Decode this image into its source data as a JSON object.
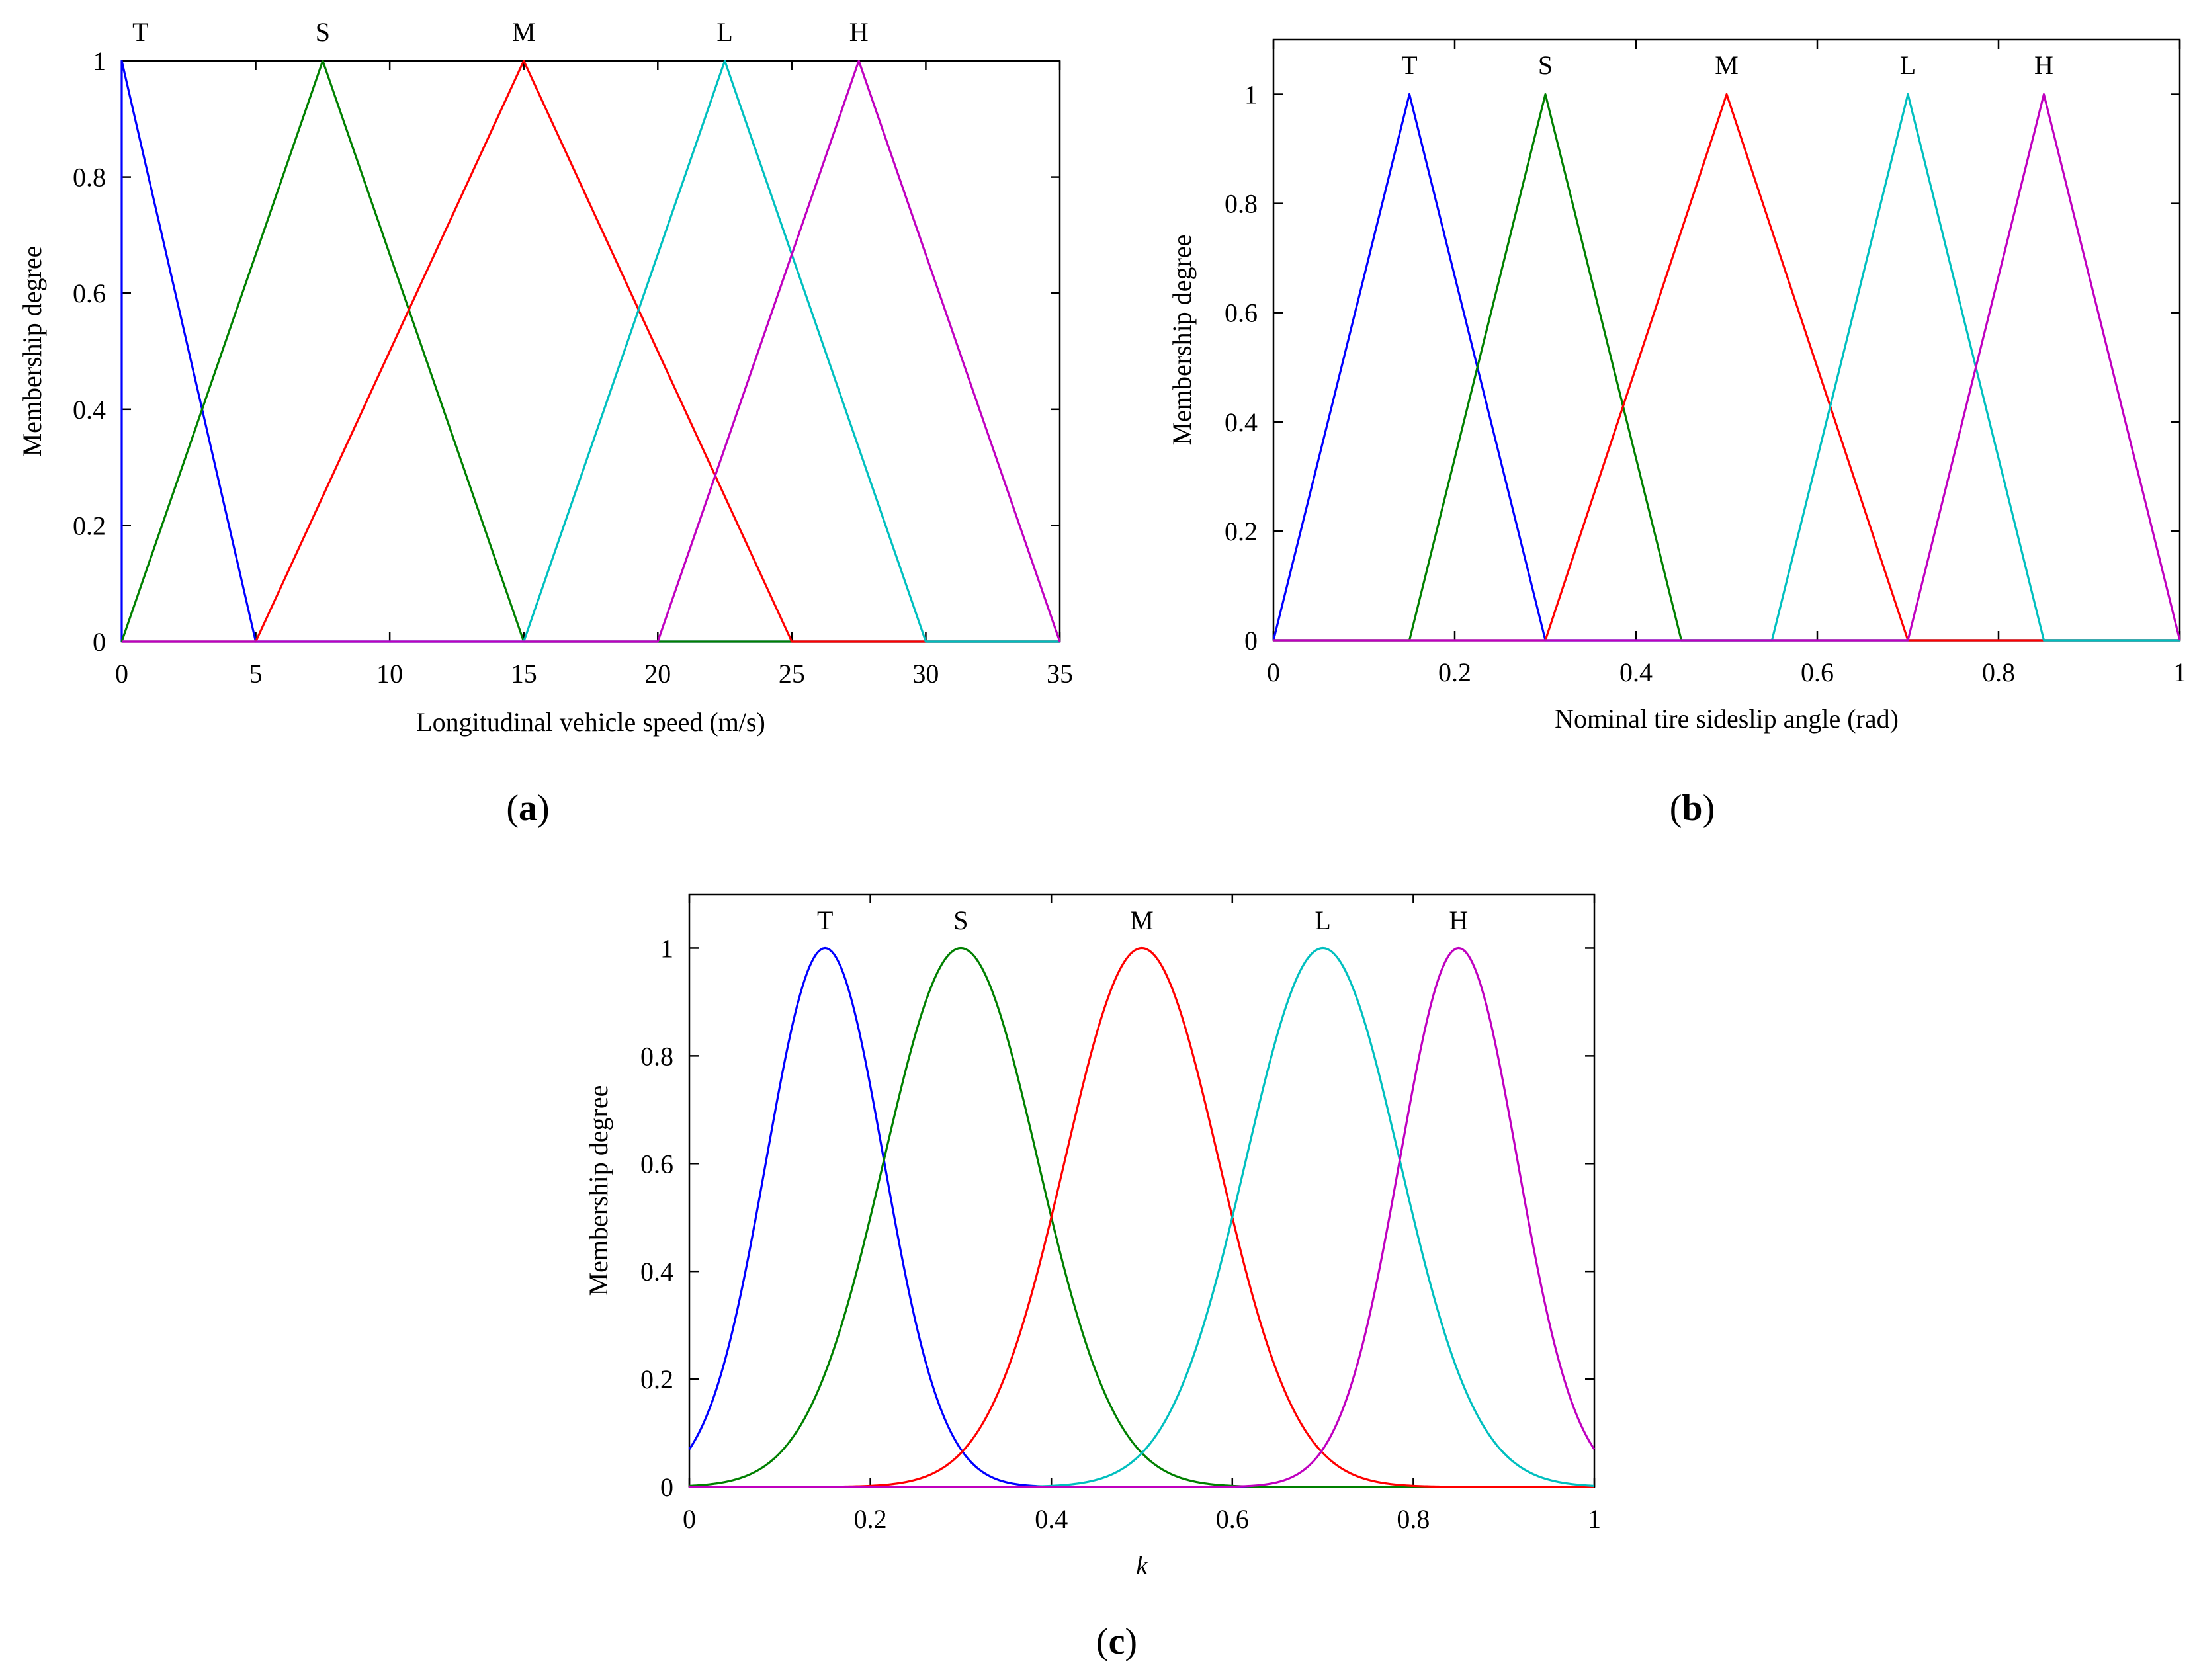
{
  "figure": {
    "panels": [
      {
        "id": "a",
        "caption_open": "(",
        "caption_letter": "a",
        "caption_close": ")"
      },
      {
        "id": "b",
        "caption_open": "(",
        "caption_letter": "b",
        "caption_close": ")"
      },
      {
        "id": "c",
        "caption_open": "(",
        "caption_letter": "c",
        "caption_close": ")"
      }
    ]
  },
  "chart_data": [
    {
      "type": "line",
      "panel": "a",
      "title": "",
      "xlabel": "Longitudinal vehicle speed (m/s)",
      "ylabel": "Membership degree",
      "xlim": [
        0,
        35
      ],
      "ylim": [
        0,
        1
      ],
      "xticks": [
        "0",
        "5",
        "10",
        "15",
        "20",
        "25",
        "30",
        "35"
      ],
      "yticks": [
        "0",
        "0.2",
        "0.4",
        "0.6",
        "0.8",
        "1"
      ],
      "grid": false,
      "series": [
        {
          "name": "T",
          "color": "#0000ff",
          "x": [
            0,
            0,
            5,
            35
          ],
          "y": [
            0,
            1,
            0,
            0
          ]
        },
        {
          "name": "S",
          "color": "#008000",
          "x": [
            0,
            7.5,
            15,
            35
          ],
          "y": [
            0,
            1,
            0,
            0
          ]
        },
        {
          "name": "M",
          "color": "#ff0000",
          "x": [
            0,
            5,
            15,
            25,
            35
          ],
          "y": [
            0,
            0,
            1,
            0,
            0
          ]
        },
        {
          "name": "L",
          "color": "#00bfbf",
          "x": [
            0,
            15,
            22.5,
            30,
            35
          ],
          "y": [
            0,
            0,
            1,
            0,
            0
          ]
        },
        {
          "name": "H",
          "color": "#bf00bf",
          "x": [
            0,
            20,
            27.5,
            35
          ],
          "y": [
            0,
            0,
            1,
            0
          ]
        }
      ],
      "peak_labels": [
        {
          "text": "T",
          "x": 0.7
        },
        {
          "text": "S",
          "x": 7.5
        },
        {
          "text": "M",
          "x": 15
        },
        {
          "text": "L",
          "x": 22.5
        },
        {
          "text": "H",
          "x": 27.5
        }
      ]
    },
    {
      "type": "line",
      "panel": "b",
      "title": "",
      "xlabel": "Nominal tire sideslip angle (rad)",
      "ylabel": "Membership degree",
      "xlim": [
        0,
        1
      ],
      "ylim": [
        0,
        1.1
      ],
      "xticks": [
        "0",
        "0.2",
        "0.4",
        "0.6",
        "0.8",
        "1"
      ],
      "yticks": [
        "0",
        "0.2",
        "0.4",
        "0.6",
        "0.8",
        "1"
      ],
      "grid": false,
      "series": [
        {
          "name": "T",
          "color": "#0000ff",
          "x": [
            0,
            0.15,
            0.3,
            1
          ],
          "y": [
            0,
            1,
            0,
            0
          ]
        },
        {
          "name": "S",
          "color": "#008000",
          "x": [
            0,
            0.15,
            0.3,
            0.45,
            1
          ],
          "y": [
            0,
            0,
            1,
            0,
            0
          ]
        },
        {
          "name": "M",
          "color": "#ff0000",
          "x": [
            0,
            0.3,
            0.5,
            0.7,
            1
          ],
          "y": [
            0,
            0,
            1,
            0,
            0
          ]
        },
        {
          "name": "L",
          "color": "#00bfbf",
          "x": [
            0,
            0.55,
            0.7,
            0.85,
            1
          ],
          "y": [
            0,
            0,
            1,
            0,
            0
          ]
        },
        {
          "name": "H",
          "color": "#bf00bf",
          "x": [
            0,
            0.7,
            0.85,
            1
          ],
          "y": [
            0,
            0,
            1,
            0
          ]
        }
      ],
      "peak_labels": [
        {
          "text": "T",
          "x": 0.15
        },
        {
          "text": "S",
          "x": 0.3
        },
        {
          "text": "M",
          "x": 0.5
        },
        {
          "text": "L",
          "x": 0.7
        },
        {
          "text": "H",
          "x": 0.85
        }
      ]
    },
    {
      "type": "line",
      "panel": "c",
      "title": "",
      "xlabel": "k",
      "ylabel": "Membership degree",
      "xlim": [
        0,
        1
      ],
      "ylim": [
        0,
        1.1
      ],
      "xticks": [
        "0",
        "0.2",
        "0.4",
        "0.6",
        "0.8",
        "1"
      ],
      "yticks": [
        "0",
        "0.2",
        "0.4",
        "0.6",
        "0.8",
        "1"
      ],
      "grid": false,
      "curve": "gaussian",
      "series": [
        {
          "name": "T",
          "color": "#0000ff",
          "center": 0.15,
          "sigma": 0.065
        },
        {
          "name": "S",
          "color": "#008000",
          "center": 0.3,
          "sigma": 0.085
        },
        {
          "name": "M",
          "color": "#ff0000",
          "center": 0.5,
          "sigma": 0.085
        },
        {
          "name": "L",
          "color": "#00bfbf",
          "center": 0.7,
          "sigma": 0.085
        },
        {
          "name": "H",
          "color": "#bf00bf",
          "center": 0.85,
          "sigma": 0.065
        }
      ],
      "peak_labels": [
        {
          "text": "T",
          "x": 0.15
        },
        {
          "text": "S",
          "x": 0.3
        },
        {
          "text": "M",
          "x": 0.5
        },
        {
          "text": "L",
          "x": 0.7
        },
        {
          "text": "H",
          "x": 0.85
        }
      ]
    }
  ]
}
